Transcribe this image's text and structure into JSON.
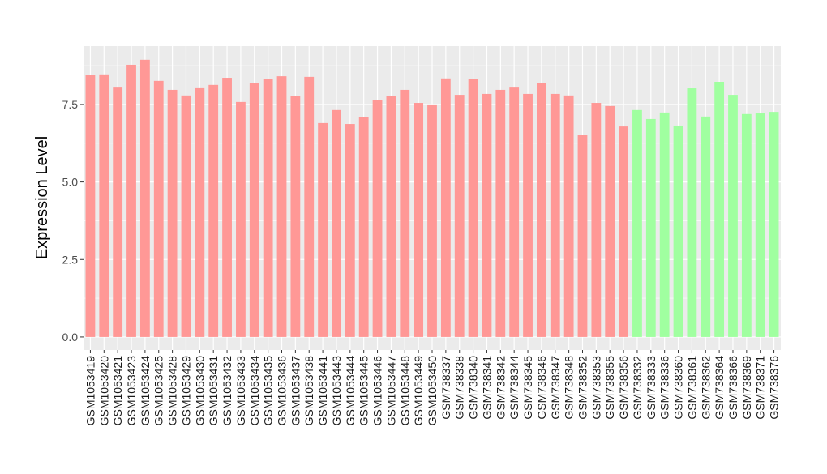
{
  "chart_data": {
    "type": "bar",
    "title": "",
    "xlabel": "",
    "ylabel": "Expression Level",
    "ylim": [
      -0.42,
      9.38
    ],
    "yticks": [
      "0.0",
      "2.5",
      "5.0",
      "7.5"
    ],
    "ytick_values": [
      0,
      2.5,
      5.0,
      7.5
    ],
    "grid": true,
    "background": "#EBEBEB",
    "group_colors": {
      "A": "#FF9896",
      "B": "#A0FFA0"
    },
    "categories": [
      "GSM1053419",
      "GSM1053420",
      "GSM1053421",
      "GSM1053423",
      "GSM1053424",
      "GSM1053425",
      "GSM1053428",
      "GSM1053429",
      "GSM1053430",
      "GSM1053431",
      "GSM1053432",
      "GSM1053433",
      "GSM1053434",
      "GSM1053435",
      "GSM1053436",
      "GSM1053437",
      "GSM1053438",
      "GSM1053441",
      "GSM1053443",
      "GSM1053444",
      "GSM1053445",
      "GSM1053446",
      "GSM1053447",
      "GSM1053448",
      "GSM1053449",
      "GSM1053450",
      "GSM738337",
      "GSM738338",
      "GSM738340",
      "GSM738341",
      "GSM738342",
      "GSM738344",
      "GSM738345",
      "GSM738346",
      "GSM738347",
      "GSM738348",
      "GSM738352",
      "GSM738353",
      "GSM738355",
      "GSM738356",
      "GSM738332",
      "GSM738333",
      "GSM738336",
      "GSM738360",
      "GSM738361",
      "GSM738362",
      "GSM738364",
      "GSM738366",
      "GSM738369",
      "GSM738371",
      "GSM738376"
    ],
    "values": [
      8.44,
      8.47,
      8.07,
      8.78,
      8.94,
      8.26,
      7.97,
      7.79,
      8.05,
      8.13,
      8.36,
      7.58,
      8.18,
      8.31,
      8.41,
      7.76,
      8.39,
      6.9,
      7.32,
      6.87,
      7.08,
      7.63,
      7.76,
      7.97,
      7.55,
      7.5,
      8.34,
      7.81,
      8.31,
      7.84,
      7.97,
      8.07,
      7.84,
      8.2,
      7.84,
      7.79,
      6.51,
      7.55,
      7.45,
      6.79,
      7.32,
      7.03,
      7.24,
      6.82,
      8.02,
      7.11,
      8.23,
      7.81,
      7.19,
      7.21,
      7.26
    ],
    "groups": [
      "A",
      "A",
      "A",
      "A",
      "A",
      "A",
      "A",
      "A",
      "A",
      "A",
      "A",
      "A",
      "A",
      "A",
      "A",
      "A",
      "A",
      "A",
      "A",
      "A",
      "A",
      "A",
      "A",
      "A",
      "A",
      "A",
      "A",
      "A",
      "A",
      "A",
      "A",
      "A",
      "A",
      "A",
      "A",
      "A",
      "A",
      "A",
      "A",
      "A",
      "B",
      "B",
      "B",
      "B",
      "B",
      "B",
      "B",
      "B",
      "B",
      "B",
      "B"
    ]
  }
}
